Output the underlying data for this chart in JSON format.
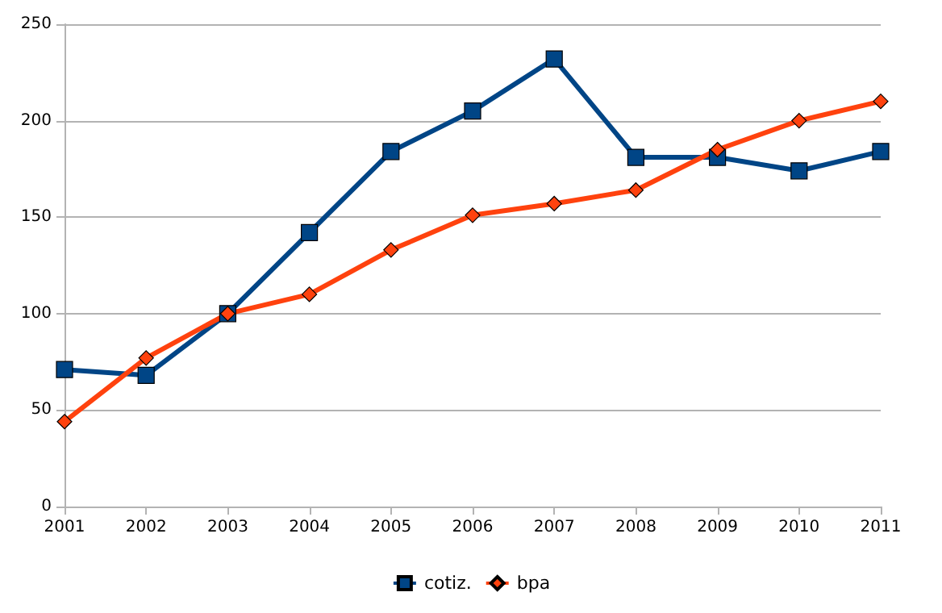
{
  "chart_data": {
    "type": "line",
    "categories": [
      "2001",
      "2002",
      "2003",
      "2004",
      "2005",
      "2006",
      "2007",
      "2008",
      "2009",
      "2010",
      "2011"
    ],
    "series": [
      {
        "name": "cotiz.",
        "color": "#004586",
        "marker": "square",
        "values": [
          71,
          68,
          100,
          142,
          184,
          205,
          232,
          181,
          181,
          174,
          184
        ]
      },
      {
        "name": "bpa",
        "color": "#ff420e",
        "marker": "diamond",
        "values": [
          44,
          77,
          100,
          110,
          133,
          151,
          157,
          164,
          185,
          200,
          210
        ]
      }
    ],
    "ylim": [
      0,
      250
    ],
    "yticks": [
      0,
      50,
      100,
      150,
      200,
      250
    ],
    "grid": "y",
    "legend": "bottom"
  }
}
